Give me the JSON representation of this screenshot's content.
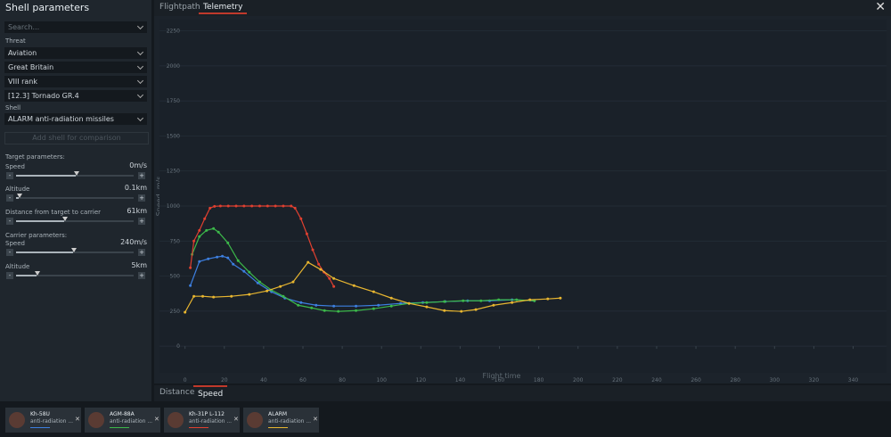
{
  "sidebar": {
    "title": "Shell parameters",
    "search_placeholder": "Search...",
    "threat_label": "Threat",
    "threat": [
      "Aviation",
      "Great Britain",
      "VIII rank",
      "[12.3] Tornado GR.4"
    ],
    "shell_label": "Shell",
    "shell": "ALARM anti-radiation missiles",
    "compare_button": "Add shell for comparison",
    "target_label": "Target parameters:",
    "target": [
      {
        "label": "Speed",
        "value": "0m/s"
      },
      {
        "label": "Altitude",
        "value": "0.1km"
      },
      {
        "label": "Distance from target to carrier",
        "value": "61km"
      }
    ],
    "carrier_label": "Carrier parameters:",
    "carrier": [
      {
        "label": "Speed",
        "value": "240m/s"
      },
      {
        "label": "Altitude",
        "value": "5km"
      }
    ]
  },
  "tabs": [
    "Flightpath",
    "Telemetry"
  ],
  "bottom_tabs": [
    "Distance",
    "Speed"
  ],
  "cards": [
    {
      "subtitle": "anti-radiation ..."
    },
    {
      "subtitle": "anti-radiation ..."
    },
    {
      "subtitle": "anti-radiation ..."
    },
    {
      "subtitle": "anti-radiation ..."
    }
  ],
  "chart_data": {
    "type": "line",
    "x_label": "Flight time",
    "y_label": "Speed, m/s",
    "xlim": [
      -13,
      357
    ],
    "ylim": [
      -190,
      2330
    ],
    "xticks": [
      0,
      20,
      40,
      60,
      80,
      100,
      120,
      140,
      160,
      180,
      200,
      220,
      240,
      260,
      280,
      300,
      320,
      340
    ],
    "yticks": [
      0,
      250,
      500,
      750,
      1000,
      1250,
      1500,
      1750,
      2000,
      2250
    ],
    "grid": true,
    "series": [
      {
        "name": "Kh-58U",
        "color": "#3d7fe0",
        "x": [
          2.7,
          7.3,
          11.8,
          16.3,
          19,
          21.8,
          24.5,
          30,
          37,
          44,
          50.8,
          59,
          66.7,
          75.7,
          87,
          98.4,
          109.7,
          121,
          132.4,
          143.8,
          155,
          166.4,
          177.8
        ],
        "values": [
          432,
          604,
          623,
          636,
          642,
          630,
          585,
          534,
          451,
          388,
          343,
          311,
          292,
          286,
          286,
          292,
          305,
          311,
          318,
          324,
          324,
          331,
          324
        ]
      },
      {
        "name": "AGM-88A",
        "color": "#3cb94a",
        "x": [
          3.6,
          7.3,
          10.9,
          14.5,
          17,
          21.8,
          27,
          32.7,
          38,
          44,
          50,
          57.6,
          64.4,
          71,
          78,
          87,
          96,
          105,
          114,
          123,
          132,
          141.5,
          150.6,
          159.6,
          168.7,
          177.8
        ],
        "values": [
          655,
          782,
          826,
          839,
          814,
          737,
          610,
          528,
          458,
          400,
          356,
          292,
          273,
          254,
          248,
          254,
          267,
          286,
          305,
          311,
          318,
          324,
          324,
          331,
          331,
          324
        ]
      },
      {
        "name": "Kh-31P L-112",
        "color": "#e04030",
        "x": [
          2.7,
          4.5,
          7.3,
          10,
          12.7,
          15,
          18,
          22,
          26,
          30,
          34,
          38,
          42,
          46,
          50,
          54,
          56,
          59,
          62,
          65,
          68,
          70.7,
          73.5,
          75.7
        ],
        "values": [
          559,
          750,
          826,
          909,
          985,
          998,
          1000,
          1000,
          1000,
          1000,
          1000,
          1000,
          1000,
          1000,
          1000,
          1000,
          985,
          909,
          801,
          687,
          585,
          528,
          483,
          426
        ]
      },
      {
        "name": "ALARM",
        "color": "#e8b630",
        "x": [
          0,
          4.5,
          9,
          14.5,
          23.6,
          32.7,
          41.7,
          48.5,
          55,
          62.6,
          69,
          75.7,
          86,
          96,
          105,
          114,
          123,
          132,
          140.6,
          148,
          157,
          166.4,
          175.5,
          184.6,
          191
        ],
        "values": [
          242,
          356,
          356,
          350,
          356,
          369,
          394,
          426,
          458,
          598,
          547,
          483,
          432,
          388,
          343,
          305,
          280,
          254,
          248,
          261,
          292,
          311,
          331,
          337,
          343
        ]
      }
    ]
  }
}
